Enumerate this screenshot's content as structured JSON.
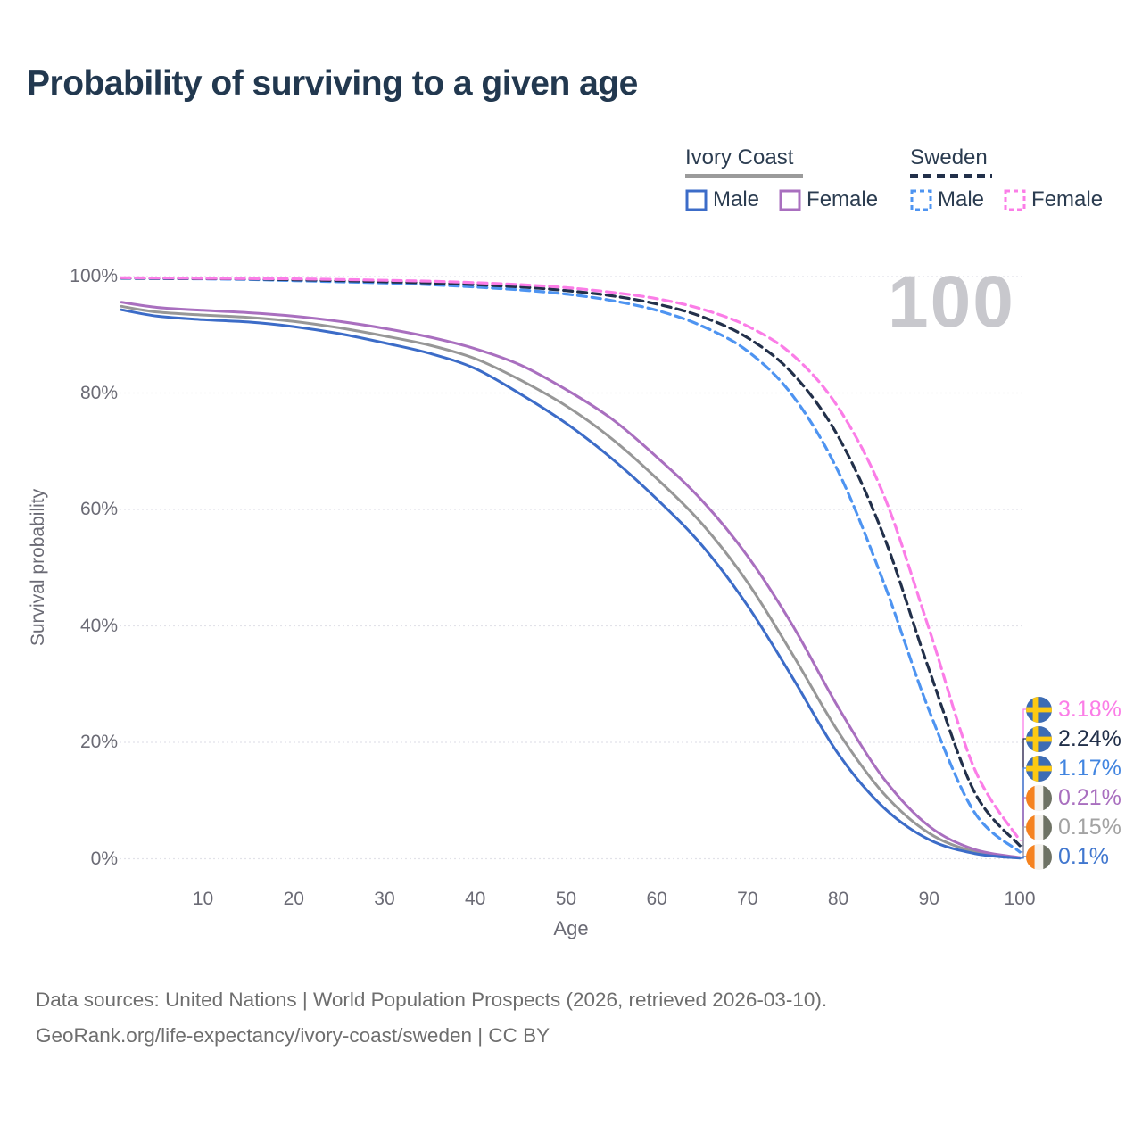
{
  "title": "Probability of surviving to a given age",
  "watermark": "100",
  "legend": {
    "groups": [
      {
        "name": "Ivory Coast",
        "line_style": "solid",
        "underline_color": "#9b9b9b",
        "items": [
          {
            "label": "Male",
            "color": "#3c6cc8"
          },
          {
            "label": "Female",
            "color": "#a96fbf"
          }
        ]
      },
      {
        "name": "Sweden",
        "line_style": "dashed",
        "underline_color": "#22304a",
        "items": [
          {
            "label": "Male",
            "color": "#4e94f1"
          },
          {
            "label": "Female",
            "color": "#fb7de7"
          }
        ]
      }
    ]
  },
  "axes": {
    "y_label": "Survival probability",
    "x_label": "Age",
    "y_ticks": [
      {
        "value": 0,
        "label": "0%"
      },
      {
        "value": 20,
        "label": "20%"
      },
      {
        "value": 40,
        "label": "40%"
      },
      {
        "value": 60,
        "label": "60%"
      },
      {
        "value": 80,
        "label": "80%"
      },
      {
        "value": 100,
        "label": "100%"
      }
    ],
    "x_ticks": [
      10,
      20,
      30,
      40,
      50,
      60,
      70,
      80,
      90,
      100
    ]
  },
  "chart_data": {
    "type": "line",
    "xlabel": "Age",
    "ylabel": "Survival probability",
    "xlim": [
      1,
      100
    ],
    "ylim": [
      0,
      100
    ],
    "grid": true,
    "x": [
      1,
      5,
      10,
      15,
      20,
      25,
      30,
      35,
      40,
      45,
      50,
      55,
      60,
      65,
      70,
      75,
      80,
      85,
      90,
      95,
      100
    ],
    "series": [
      {
        "name": "Ivory Coast Total",
        "country": "Ivory Coast",
        "sex": "Total",
        "color": "#979797",
        "dash": "solid",
        "values": [
          94.9,
          93.9,
          93.4,
          93.0,
          92.3,
          91.2,
          89.8,
          88.2,
          85.9,
          82.2,
          77.8,
          72.2,
          65.3,
          57.5,
          47.5,
          35.0,
          21.8,
          11.2,
          4.4,
          1.2,
          0.15
        ]
      },
      {
        "name": "Ivory Coast Female",
        "country": "Ivory Coast",
        "sex": "Female",
        "color": "#a96fbf",
        "dash": "solid",
        "values": [
          95.6,
          94.7,
          94.2,
          93.8,
          93.2,
          92.3,
          91.1,
          89.6,
          87.6,
          84.8,
          80.6,
          75.6,
          69.0,
          61.5,
          52.0,
          40.0,
          26.0,
          13.8,
          5.6,
          1.6,
          0.21
        ]
      },
      {
        "name": "Ivory Coast Male",
        "country": "Ivory Coast",
        "sex": "Male",
        "color": "#3c6cc8",
        "dash": "solid",
        "values": [
          94.3,
          93.2,
          92.6,
          92.2,
          91.4,
          90.2,
          88.6,
          86.8,
          84.2,
          79.8,
          74.8,
          68.8,
          61.8,
          53.8,
          43.5,
          31.0,
          18.0,
          8.8,
          3.3,
          0.9,
          0.1
        ]
      },
      {
        "name": "Sweden Male",
        "country": "Sweden",
        "sex": "Male",
        "color": "#4e94f1",
        "dash": "dashed",
        "values": [
          99.7,
          99.65,
          99.6,
          99.5,
          99.3,
          99.1,
          98.9,
          98.6,
          98.2,
          97.7,
          97.0,
          95.9,
          94.2,
          91.5,
          87.2,
          79.5,
          66.5,
          47.5,
          25.5,
          8.0,
          1.17
        ]
      },
      {
        "name": "Sweden Total",
        "country": "Sweden",
        "sex": "Total",
        "color": "#22304a",
        "dash": "dashed",
        "values": [
          99.75,
          99.7,
          99.65,
          99.6,
          99.45,
          99.3,
          99.1,
          98.9,
          98.6,
          98.2,
          97.6,
          96.7,
          95.3,
          93.1,
          89.5,
          83.3,
          72.5,
          55.5,
          32.5,
          11.5,
          2.24
        ]
      },
      {
        "name": "Sweden Female",
        "country": "Sweden",
        "sex": "Female",
        "color": "#fb7de7",
        "dash": "dashed",
        "values": [
          99.8,
          99.75,
          99.7,
          99.65,
          99.6,
          99.5,
          99.35,
          99.2,
          98.95,
          98.6,
          98.1,
          97.3,
          96.2,
          94.4,
          91.5,
          86.5,
          77.5,
          62.5,
          39.5,
          15.5,
          3.18
        ]
      }
    ],
    "end_labels": [
      {
        "value": "3.18%",
        "series": "Sweden Female",
        "flag": "sweden",
        "color": "#fb7de7",
        "final": 3.18
      },
      {
        "value": "2.24%",
        "series": "Sweden Total",
        "flag": "sweden",
        "color": "#22304a",
        "final": 2.24
      },
      {
        "value": "1.17%",
        "series": "Sweden Male",
        "flag": "sweden",
        "color": "#4285e0",
        "final": 1.17
      },
      {
        "value": "0.21%",
        "series": "Ivory Coast Female",
        "flag": "ivory-coast",
        "color": "#a96fbf",
        "final": 0.21
      },
      {
        "value": "0.15%",
        "series": "Ivory Coast Total",
        "flag": "ivory-coast",
        "color": "#a3a3a3",
        "final": 0.15
      },
      {
        "value": "0.1%",
        "series": "Ivory Coast Male",
        "flag": "ivory-coast",
        "color": "#4177cf",
        "final": 0.1
      }
    ],
    "flag_colors": {
      "sweden_blue": "#3d6cb4",
      "sweden_yellow": "#fdc913",
      "ic_orange": "#f5821f",
      "ic_white": "#f4f2ee",
      "ic_green": "#6e7264"
    }
  },
  "footer": {
    "line1": "Data sources: United Nations | World Population Prospects (2026, retrieved 2026-03-10).",
    "line2": "GeoRank.org/life-expectancy/ivory-coast/sweden | CC BY"
  }
}
